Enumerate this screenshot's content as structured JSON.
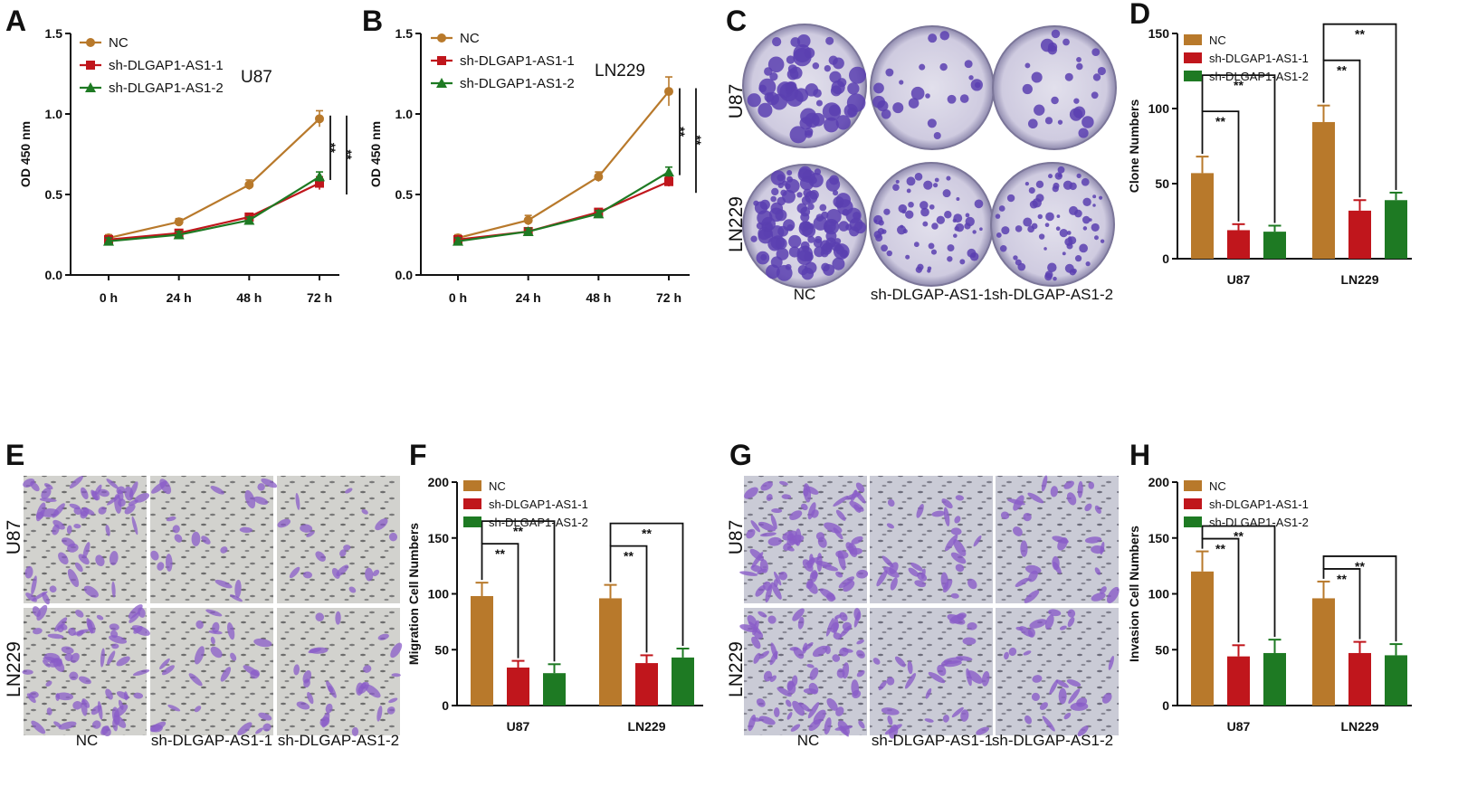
{
  "colors": {
    "nc": "#B8792B",
    "sh1": "#C0161C",
    "sh2": "#1E7A23",
    "stain": "#5B3FB0",
    "dish": "#CFCBE0"
  },
  "panels": {
    "A": {
      "letter": "A",
      "cell_label": "U87"
    },
    "B": {
      "letter": "B",
      "cell_label": "LN229"
    },
    "C": {
      "letter": "C",
      "row_labels": [
        "U87",
        "LN229"
      ],
      "col_labels": [
        "NC",
        "sh-DLGAP-AS1-1",
        "sh-DLGAP-AS1-2"
      ]
    },
    "D": {
      "letter": "D"
    },
    "E": {
      "letter": "E",
      "row_labels": [
        "U87",
        "LN229"
      ],
      "col_labels": [
        "NC",
        "sh-DLGAP-AS1-1",
        "sh-DLGAP-AS1-2"
      ]
    },
    "F": {
      "letter": "F"
    },
    "G": {
      "letter": "G",
      "row_labels": [
        "U87",
        "LN229"
      ],
      "col_labels": [
        "NC",
        "sh-DLGAP-AS1-1",
        "sh-DLGAP-AS1-2"
      ]
    },
    "H": {
      "letter": "H"
    }
  },
  "chart_data": [
    {
      "panel": "A",
      "type": "line",
      "title": "",
      "annotation": "U87",
      "categories": [
        "0 h",
        "24 h",
        "48 h",
        "72 h"
      ],
      "ylabel": "OD 450 nm",
      "ylim": [
        0,
        1.5
      ],
      "yticks": [
        "0.0",
        "0.5",
        "1.0",
        "1.5"
      ],
      "series": [
        {
          "name": "NC",
          "values": [
            0.23,
            0.33,
            0.56,
            0.97
          ],
          "err": [
            0.02,
            0.02,
            0.03,
            0.05
          ]
        },
        {
          "name": "sh-DLGAP1-AS1-1",
          "values": [
            0.22,
            0.26,
            0.36,
            0.57
          ],
          "err": [
            0.02,
            0.02,
            0.02,
            0.04
          ]
        },
        {
          "name": "sh-DLGAP1-AS1-2",
          "values": [
            0.21,
            0.25,
            0.34,
            0.61
          ],
          "err": [
            0.02,
            0.02,
            0.02,
            0.03
          ]
        }
      ],
      "significance": [
        "**",
        "**"
      ],
      "legend": "top-left"
    },
    {
      "panel": "B",
      "type": "line",
      "title": "",
      "annotation": "LN229",
      "categories": [
        "0 h",
        "24 h",
        "48 h",
        "72 h"
      ],
      "ylabel": "OD 450 nm",
      "ylim": [
        0,
        1.5
      ],
      "yticks": [
        "0.0",
        "0.5",
        "1.0",
        "1.5"
      ],
      "series": [
        {
          "name": "NC",
          "values": [
            0.23,
            0.34,
            0.61,
            1.14
          ],
          "err": [
            0.02,
            0.03,
            0.03,
            0.09
          ]
        },
        {
          "name": "sh-DLGAP1-AS1-1",
          "values": [
            0.22,
            0.27,
            0.39,
            0.58
          ],
          "err": [
            0.02,
            0.02,
            0.02,
            0.03
          ]
        },
        {
          "name": "sh-DLGAP1-AS1-2",
          "values": [
            0.21,
            0.27,
            0.38,
            0.64
          ],
          "err": [
            0.02,
            0.02,
            0.02,
            0.03
          ]
        }
      ],
      "significance": [
        "**",
        "**"
      ],
      "legend": "top-left"
    },
    {
      "panel": "D",
      "type": "bar",
      "categories": [
        "U87",
        "LN229"
      ],
      "ylabel": "Clone Numbers",
      "ylim": [
        0,
        150
      ],
      "yticks": [
        "0",
        "50",
        "100",
        "150"
      ],
      "series": [
        {
          "name": "NC",
          "values": [
            57,
            91
          ],
          "err": [
            11,
            11
          ]
        },
        {
          "name": "sh-DLGAP1-AS1-1",
          "values": [
            19,
            32
          ],
          "err": [
            4,
            7
          ]
        },
        {
          "name": "sh-DLGAP1-AS1-2",
          "values": [
            18,
            39
          ],
          "err": [
            4,
            5
          ]
        }
      ],
      "significance": [
        "**",
        "**",
        "**",
        "**"
      ],
      "legend": "top-left"
    },
    {
      "panel": "F",
      "type": "bar",
      "categories": [
        "U87",
        "LN229"
      ],
      "ylabel": "Migration Cell Numbers",
      "ylim": [
        0,
        200
      ],
      "yticks": [
        "0",
        "50",
        "100",
        "150",
        "200"
      ],
      "series": [
        {
          "name": "NC",
          "values": [
            98,
            96
          ],
          "err": [
            12,
            12
          ]
        },
        {
          "name": "sh-DLGAP1-AS1-1",
          "values": [
            34,
            38
          ],
          "err": [
            6,
            7
          ]
        },
        {
          "name": "sh-DLGAP1-AS1-2",
          "values": [
            29,
            43
          ],
          "err": [
            8,
            8
          ]
        }
      ],
      "significance": [
        "**",
        "**",
        "**",
        "**"
      ],
      "legend": "top-left"
    },
    {
      "panel": "H",
      "type": "bar",
      "categories": [
        "U87",
        "LN229"
      ],
      "ylabel": "Invasion Cell Numbers",
      "ylim": [
        0,
        200
      ],
      "yticks": [
        "0",
        "50",
        "100",
        "150",
        "200"
      ],
      "series": [
        {
          "name": "NC",
          "values": [
            120,
            96
          ],
          "err": [
            18,
            15
          ]
        },
        {
          "name": "sh-DLGAP1-AS1-1",
          "values": [
            44,
            47
          ],
          "err": [
            10,
            10
          ]
        },
        {
          "name": "sh-DLGAP1-AS1-2",
          "values": [
            47,
            45
          ],
          "err": [
            12,
            10
          ]
        }
      ],
      "significance": [
        "**",
        "**",
        "**",
        "**"
      ],
      "legend": "top-left"
    }
  ]
}
